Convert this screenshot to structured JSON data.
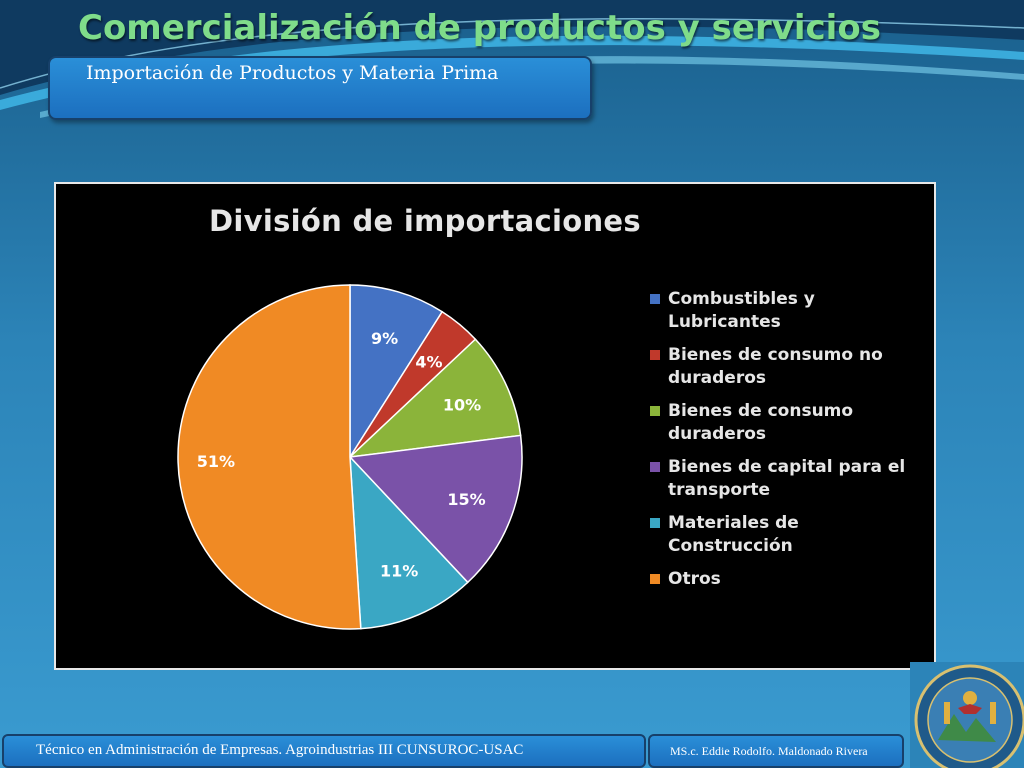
{
  "slide": {
    "title": "Comercialización de productos y servicios",
    "subtitle": "Importación de Productos y Materia Prima"
  },
  "chart_data": {
    "type": "pie",
    "title": "División de importaciones",
    "legend_position": "right",
    "slices": [
      {
        "label": "Combustibles y Lubricantes",
        "value": 9,
        "display": "9%",
        "color": "#4472c4"
      },
      {
        "label": "Bienes de consumo no duraderos",
        "value": 4,
        "display": "4%",
        "color": "#c0392b"
      },
      {
        "label": "Bienes de consumo duraderos",
        "value": 10,
        "display": "10%",
        "color": "#8bb43a"
      },
      {
        "label": "Bienes de capital para el transporte",
        "value": 15,
        "display": "15%",
        "color": "#7a52a8"
      },
      {
        "label": "Materiales de Construcción",
        "value": 11,
        "display": "11%",
        "color": "#3aa7c4"
      },
      {
        "label": "Otros",
        "value": 51,
        "display": "51%",
        "color": "#f08a24"
      }
    ]
  },
  "footer": {
    "course": "Técnico en Administración de Empresas. Agroindustrias III CUNSUROC-USAC",
    "author": "MS.c. Eddie Rodolfo. Maldonado Rivera"
  },
  "icons": {
    "seal": "university-seal-icon"
  }
}
